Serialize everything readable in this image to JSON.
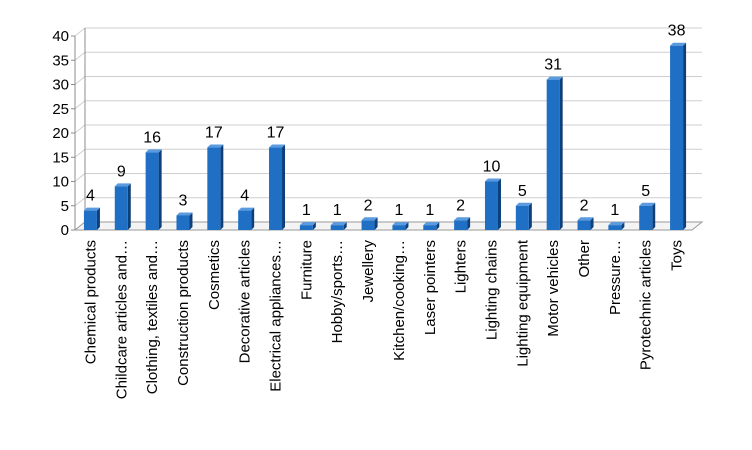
{
  "chart_data": {
    "type": "bar",
    "title": "",
    "xlabel": "",
    "ylabel": "",
    "ylim": [
      0,
      40
    ],
    "y_ticks": [
      0,
      5,
      10,
      15,
      20,
      25,
      30,
      35,
      40
    ],
    "grid": true,
    "legend": "none",
    "bar_color": "#1f6fc5",
    "categories": [
      "Chemical products",
      "Childcare articles and…",
      "Clothing, textiles and…",
      "Construction products",
      "Cosmetics",
      "Decorative articles",
      "Electrical appliances…",
      "Furniture",
      "Hobby/sports…",
      "Jewellery",
      "Kitchen/cooking…",
      "Laser pointers",
      "Lighters",
      "Lighting chains",
      "Lighting equipment",
      "Motor vehicles",
      "Other",
      "Pressure…",
      "Pyrotechnic articles",
      "Toys"
    ],
    "values": [
      4,
      9,
      16,
      3,
      17,
      4,
      17,
      1,
      1,
      2,
      1,
      1,
      2,
      10,
      5,
      31,
      2,
      1,
      5,
      38
    ]
  }
}
